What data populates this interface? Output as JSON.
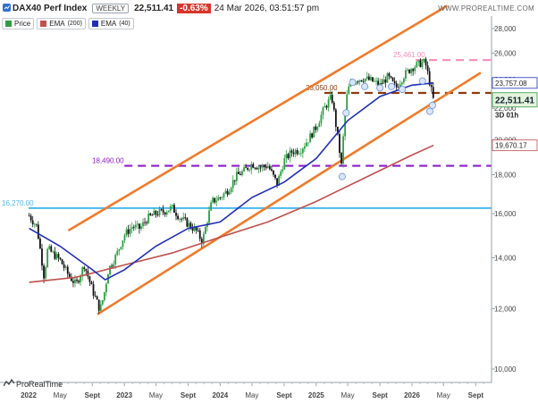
{
  "header": {
    "title": "DAX40 Perf Index",
    "timeframe": "WEEKLY",
    "last_price": "22,511.41",
    "change": "-0.63%",
    "datetime": "24 Mar 2026, 03:51:57 pm",
    "site": "WWW.PROREALTIME.COM"
  },
  "legend": [
    {
      "label": "Price",
      "color": "#2e9e44"
    },
    {
      "label": "EMA",
      "param": "(200)",
      "color": "#c0504d"
    },
    {
      "label": "EMA",
      "param": "(40)",
      "color": "#1f2fb8"
    }
  ],
  "brand": "ProRealTime",
  "colors": {
    "up": "#2e9e44",
    "down": "#111111",
    "ema200": "#c0504d",
    "ema40": "#1f2fb8",
    "channel": "#f07a2a",
    "line_16270": "#4ab8ee",
    "line_18490": "#8a1fc8",
    "line_23050": "#8b3a0e",
    "line_25461": "#f48bb9"
  },
  "chart_data": {
    "type": "candlestick",
    "timeframe": "weekly",
    "x_tick_labels": [
      "2022",
      "May",
      "Sept",
      "2023",
      "May",
      "Sept",
      "2024",
      "May",
      "Sept",
      "2025",
      "May",
      "Sept",
      "2026",
      "May",
      "Sept"
    ],
    "x_tick_dates": [
      "2022-01-01",
      "2022-05-01",
      "2022-09-01",
      "2023-01-01",
      "2023-05-01",
      "2023-09-01",
      "2024-01-01",
      "2024-05-01",
      "2024-09-01",
      "2025-01-01",
      "2025-05-01",
      "2025-09-01",
      "2026-01-01",
      "2026-05-01",
      "2026-09-01"
    ],
    "y_tick_labels": [
      "10,000",
      "12,000",
      "14,000",
      "16,000",
      "18,000",
      "20,000",
      "22,000",
      "24,000",
      "26,000",
      "28,000"
    ],
    "y_ticks": [
      10000,
      12000,
      14000,
      16000,
      18000,
      20000,
      22000,
      24000,
      26000,
      28000
    ],
    "y_scale": "log",
    "x_range": [
      "2022-01-01",
      "2026-10-01"
    ],
    "ylim": [
      9500,
      30000
    ],
    "price_series": [
      [
        "2022-01-03",
        15900
      ],
      [
        "2022-02-01",
        15400
      ],
      [
        "2022-03-01",
        13200
      ],
      [
        "2022-03-15",
        14400
      ],
      [
        "2022-04-01",
        14200
      ],
      [
        "2022-05-01",
        13900
      ],
      [
        "2022-06-01",
        13300
      ],
      [
        "2022-07-01",
        12900
      ],
      [
        "2022-08-01",
        13700
      ],
      [
        "2022-09-01",
        12700
      ],
      [
        "2022-09-30",
        11950
      ],
      [
        "2022-10-15",
        12500
      ],
      [
        "2022-11-01",
        13500
      ],
      [
        "2022-12-01",
        14100
      ],
      [
        "2023-01-01",
        15000
      ],
      [
        "2023-02-01",
        15400
      ],
      [
        "2023-03-01",
        15300
      ],
      [
        "2023-04-01",
        15800
      ],
      [
        "2023-05-01",
        16000
      ],
      [
        "2023-06-01",
        16100
      ],
      [
        "2023-07-01",
        16300
      ],
      [
        "2023-08-01",
        15800
      ],
      [
        "2023-09-01",
        15500
      ],
      [
        "2023-10-01",
        15200
      ],
      [
        "2023-10-25",
        14700
      ],
      [
        "2023-11-15",
        15800
      ],
      [
        "2023-12-01",
        16600
      ],
      [
        "2024-01-01",
        16800
      ],
      [
        "2024-02-01",
        17200
      ],
      [
        "2024-03-01",
        17900
      ],
      [
        "2024-04-01",
        18200
      ],
      [
        "2024-05-01",
        18600
      ],
      [
        "2024-06-01",
        18400
      ],
      [
        "2024-07-01",
        18500
      ],
      [
        "2024-08-05",
        17500
      ],
      [
        "2024-09-01",
        18800
      ],
      [
        "2024-10-01",
        19300
      ],
      [
        "2024-11-01",
        19400
      ],
      [
        "2024-12-01",
        20000
      ],
      [
        "2025-01-01",
        20800
      ],
      [
        "2025-02-01",
        22000
      ],
      [
        "2025-03-01",
        22800
      ],
      [
        "2025-04-07",
        18500
      ],
      [
        "2025-04-20",
        21500
      ],
      [
        "2025-05-01",
        23300
      ],
      [
        "2025-06-01",
        24000
      ],
      [
        "2025-07-01",
        24100
      ],
      [
        "2025-08-01",
        23900
      ],
      [
        "2025-09-01",
        23600
      ],
      [
        "2025-10-01",
        24200
      ],
      [
        "2025-11-01",
        23400
      ],
      [
        "2025-12-01",
        24300
      ],
      [
        "2026-01-01",
        24900
      ],
      [
        "2026-02-01",
        25200
      ],
      [
        "2026-02-20",
        25300
      ],
      [
        "2026-03-05",
        24200
      ],
      [
        "2026-03-24",
        22511
      ]
    ],
    "ema_200": [
      [
        "2022-01-03",
        13000
      ],
      [
        "2022-07-01",
        13200
      ],
      [
        "2023-01-01",
        13700
      ],
      [
        "2023-07-01",
        14200
      ],
      [
        "2024-01-01",
        14900
      ],
      [
        "2024-07-01",
        15600
      ],
      [
        "2025-01-01",
        16600
      ],
      [
        "2025-07-01",
        17800
      ],
      [
        "2026-01-01",
        19100
      ],
      [
        "2026-03-24",
        19670
      ]
    ],
    "ema_40": [
      [
        "2022-01-03",
        15300
      ],
      [
        "2022-05-01",
        14500
      ],
      [
        "2022-09-01",
        13500
      ],
      [
        "2022-10-20",
        13100
      ],
      [
        "2023-01-01",
        13500
      ],
      [
        "2023-05-01",
        14500
      ],
      [
        "2023-09-01",
        15300
      ],
      [
        "2024-01-01",
        15600
      ],
      [
        "2024-05-01",
        16800
      ],
      [
        "2024-09-01",
        17600
      ],
      [
        "2025-01-01",
        18900
      ],
      [
        "2025-05-01",
        21200
      ],
      [
        "2025-09-01",
        22800
      ],
      [
        "2026-01-01",
        23600
      ],
      [
        "2026-03-24",
        23757
      ]
    ],
    "horizontal_levels": [
      {
        "value": 16270,
        "label": "16,270.00",
        "style": "solid",
        "start": "2022-01-01"
      },
      {
        "value": 18490,
        "label": "18,490.00",
        "style": "dashed",
        "start": "2023-01-01"
      },
      {
        "value": 23050,
        "label": "23,050.00",
        "style": "dashed",
        "start": "2025-02-01"
      },
      {
        "value": 25461,
        "label": "25,461.00",
        "style": "dashed",
        "start": "2026-01-15"
      }
    ],
    "channel_upper": [
      [
        "2022-06-01",
        15200
      ],
      [
        "2026-05-15",
        30000
      ]
    ],
    "channel_lower": [
      [
        "2022-09-20",
        11800
      ],
      [
        "2026-09-20",
        24500
      ]
    ],
    "price_labels": [
      {
        "value": 23757.08,
        "text": "23,757.08",
        "kind": "ema40"
      },
      {
        "value": 22511.41,
        "text": "22,511.41",
        "sub": "3D 01h",
        "kind": "last"
      },
      {
        "value": 19670.17,
        "text": "19,670.17",
        "kind": "ema200"
      }
    ],
    "dividend_markers": [
      [
        "2025-04-10",
        17900
      ],
      [
        "2025-04-25",
        21700
      ],
      [
        "2025-05-20",
        23800
      ],
      [
        "2025-07-05",
        23500
      ],
      [
        "2025-09-01",
        23400
      ],
      [
        "2025-10-15",
        23500
      ],
      [
        "2025-11-25",
        23300
      ],
      [
        "2026-02-10",
        23900
      ],
      [
        "2026-03-10",
        21800
      ],
      [
        "2026-03-20",
        22200
      ]
    ],
    "grid": false
  }
}
